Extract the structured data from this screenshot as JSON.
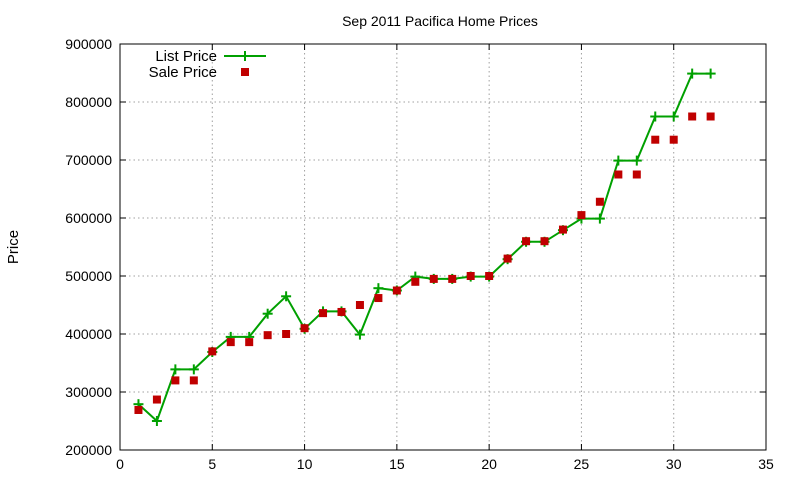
{
  "chart_data": {
    "type": "line",
    "title": "Sep 2011 Pacifica Home Prices",
    "xlabel": "",
    "ylabel": "Price",
    "xlim": [
      0,
      35
    ],
    "ylim": [
      200000,
      900000
    ],
    "x_ticks": [
      0,
      5,
      10,
      15,
      20,
      25,
      30,
      35
    ],
    "y_ticks": [
      200000,
      300000,
      400000,
      500000,
      600000,
      700000,
      800000,
      900000
    ],
    "grid": true,
    "legend_position": "top-left",
    "series": [
      {
        "name": "List Price",
        "style": "line-with-plus-markers",
        "color": "#00a000",
        "x": [
          1,
          2,
          3,
          4,
          5,
          6,
          7,
          8,
          9,
          10,
          11,
          12,
          13,
          14,
          15,
          16,
          17,
          18,
          19,
          20,
          21,
          22,
          23,
          24,
          25,
          26,
          27,
          28,
          29,
          30,
          31,
          32
        ],
        "y": [
          279000,
          250000,
          339000,
          339000,
          369000,
          395000,
          395000,
          435000,
          465000,
          409000,
          439000,
          439000,
          399000,
          479000,
          475000,
          499000,
          495000,
          495000,
          499000,
          499000,
          529000,
          559000,
          559000,
          579000,
          599000,
          599000,
          699000,
          699000,
          775000,
          775000,
          849000,
          849000
        ]
      },
      {
        "name": "Sale Price",
        "style": "square-markers",
        "color": "#c00000",
        "x": [
          1,
          2,
          3,
          4,
          5,
          6,
          7,
          8,
          9,
          10,
          11,
          12,
          13,
          14,
          15,
          16,
          17,
          18,
          19,
          20,
          21,
          22,
          23,
          24,
          25,
          26,
          27,
          28,
          29,
          30,
          31,
          32
        ],
        "y": [
          269000,
          287000,
          320000,
          320000,
          370000,
          386000,
          386000,
          398000,
          400000,
          410000,
          436000,
          438000,
          450000,
          462000,
          475000,
          490000,
          495000,
          495000,
          500000,
          500000,
          530000,
          560000,
          560000,
          580000,
          605000,
          628000,
          675000,
          675000,
          735000,
          735000,
          775000,
          775000
        ]
      }
    ]
  }
}
